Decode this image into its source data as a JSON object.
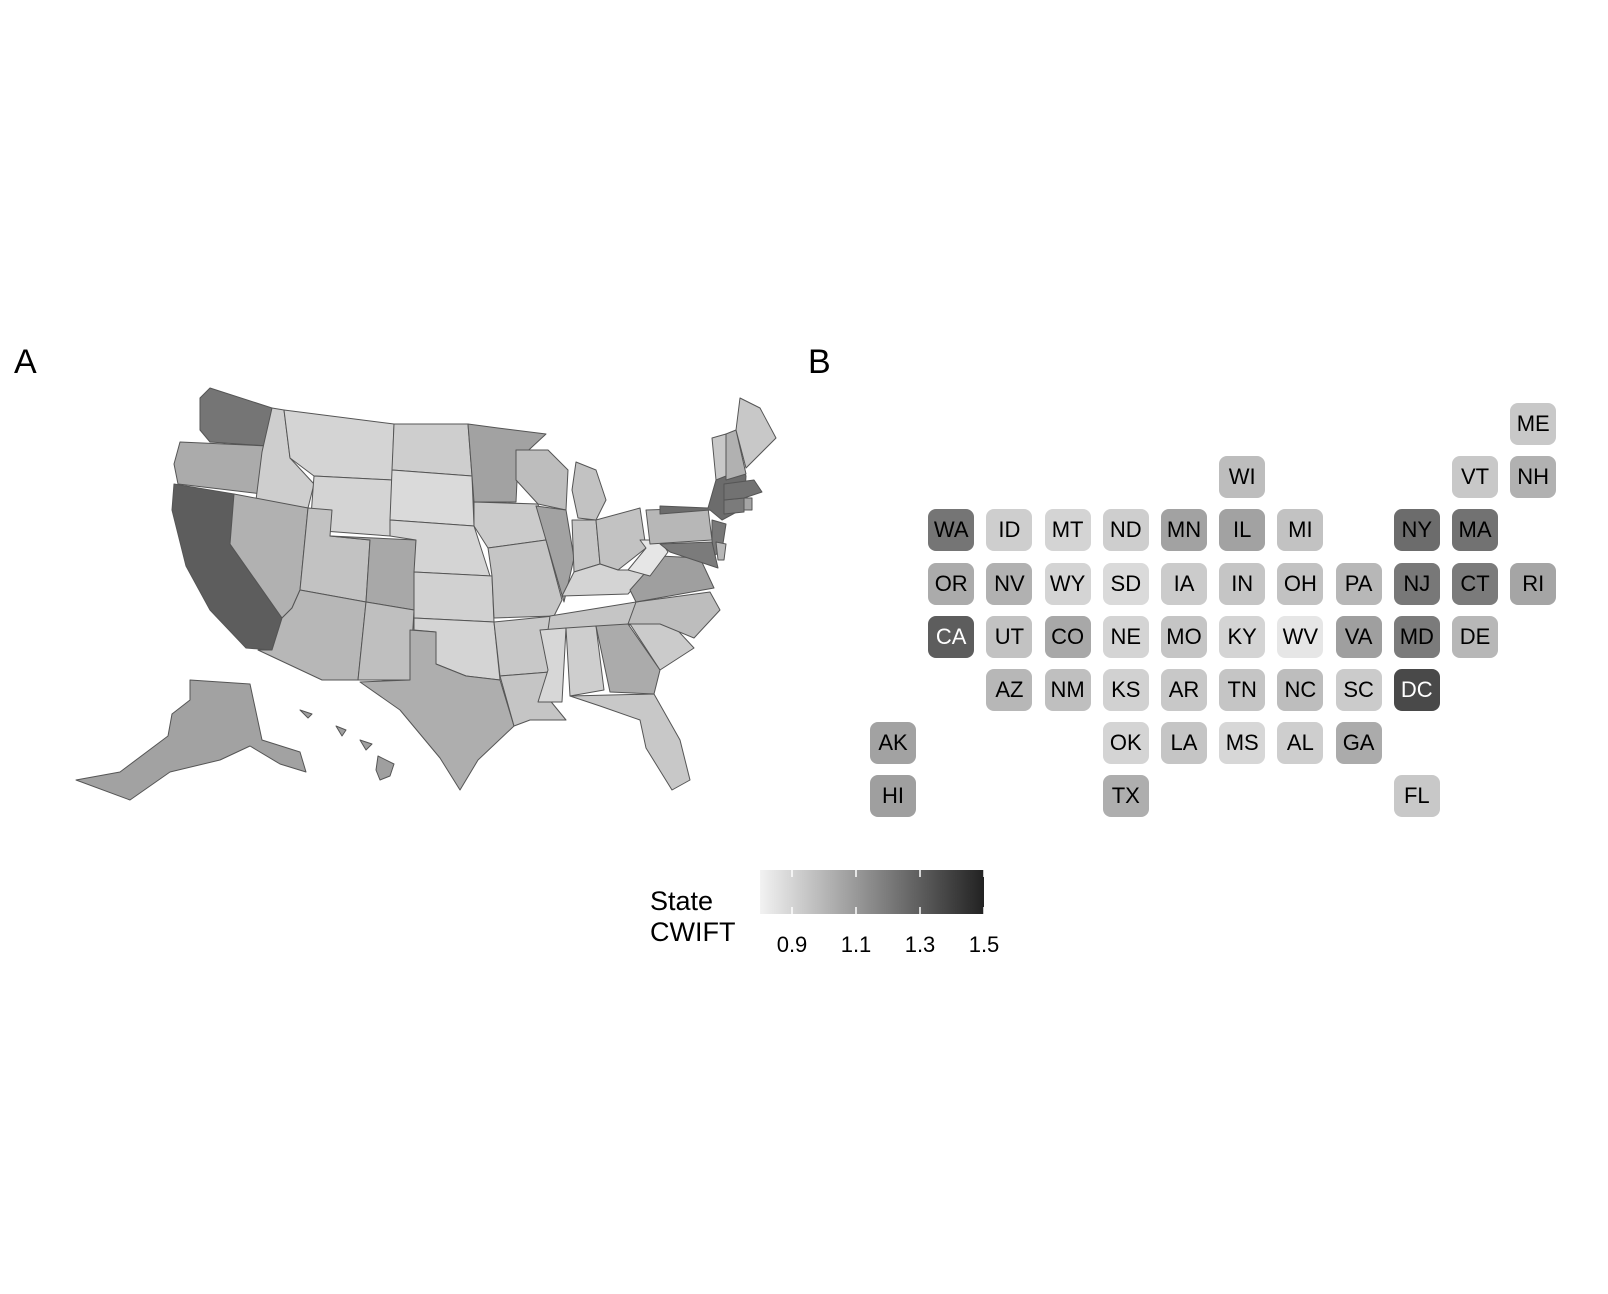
{
  "panels": {
    "a_label": "A",
    "b_label": "B"
  },
  "legend": {
    "title_line1": "State",
    "title_line2": "CWIFT",
    "min": 0.8,
    "max": 1.5,
    "ticks": [
      "0.9",
      "1.1",
      "1.3",
      "1.5"
    ],
    "tick_values": [
      0.9,
      1.1,
      1.3,
      1.5
    ],
    "color_low": "#f2f2f2",
    "color_high": "#222222"
  },
  "states": [
    {
      "abbr": "ME",
      "value": 0.94,
      "col": 11,
      "row": 0
    },
    {
      "abbr": "WI",
      "value": 0.98,
      "col": 6,
      "row": 1
    },
    {
      "abbr": "VT",
      "value": 0.94,
      "col": 10,
      "row": 1
    },
    {
      "abbr": "NH",
      "value": 1.02,
      "col": 11,
      "row": 1
    },
    {
      "abbr": "WA",
      "value": 1.22,
      "col": 1,
      "row": 2
    },
    {
      "abbr": "ID",
      "value": 0.92,
      "col": 2,
      "row": 2
    },
    {
      "abbr": "MT",
      "value": 0.9,
      "col": 3,
      "row": 2
    },
    {
      "abbr": "ND",
      "value": 0.92,
      "col": 4,
      "row": 2
    },
    {
      "abbr": "MN",
      "value": 1.07,
      "col": 5,
      "row": 2
    },
    {
      "abbr": "IL",
      "value": 1.07,
      "col": 6,
      "row": 2
    },
    {
      "abbr": "MI",
      "value": 0.96,
      "col": 7,
      "row": 2
    },
    {
      "abbr": "NY",
      "value": 1.25,
      "col": 9,
      "row": 2
    },
    {
      "abbr": "MA",
      "value": 1.23,
      "col": 10,
      "row": 2
    },
    {
      "abbr": "OR",
      "value": 1.04,
      "col": 1,
      "row": 3
    },
    {
      "abbr": "NV",
      "value": 1.02,
      "col": 2,
      "row": 3
    },
    {
      "abbr": "WY",
      "value": 0.9,
      "col": 3,
      "row": 3
    },
    {
      "abbr": "SD",
      "value": 0.88,
      "col": 4,
      "row": 3
    },
    {
      "abbr": "IA",
      "value": 0.93,
      "col": 5,
      "row": 3
    },
    {
      "abbr": "IN",
      "value": 0.95,
      "col": 6,
      "row": 3
    },
    {
      "abbr": "OH",
      "value": 0.96,
      "col": 7,
      "row": 3
    },
    {
      "abbr": "PA",
      "value": 1.0,
      "col": 8,
      "row": 3
    },
    {
      "abbr": "NJ",
      "value": 1.21,
      "col": 9,
      "row": 3
    },
    {
      "abbr": "CT",
      "value": 1.2,
      "col": 10,
      "row": 3
    },
    {
      "abbr": "RI",
      "value": 1.06,
      "col": 11,
      "row": 3
    },
    {
      "abbr": "CA",
      "value": 1.3,
      "col": 1,
      "row": 4
    },
    {
      "abbr": "UT",
      "value": 0.96,
      "col": 2,
      "row": 4
    },
    {
      "abbr": "CO",
      "value": 1.05,
      "col": 3,
      "row": 4
    },
    {
      "abbr": "NE",
      "value": 0.9,
      "col": 4,
      "row": 4
    },
    {
      "abbr": "MO",
      "value": 0.95,
      "col": 5,
      "row": 4
    },
    {
      "abbr": "KY",
      "value": 0.9,
      "col": 6,
      "row": 4
    },
    {
      "abbr": "WV",
      "value": 0.84,
      "col": 7,
      "row": 4
    },
    {
      "abbr": "VA",
      "value": 1.08,
      "col": 8,
      "row": 4
    },
    {
      "abbr": "MD",
      "value": 1.2,
      "col": 9,
      "row": 4
    },
    {
      "abbr": "DE",
      "value": 1.0,
      "col": 10,
      "row": 4
    },
    {
      "abbr": "AZ",
      "value": 1.0,
      "col": 2,
      "row": 5
    },
    {
      "abbr": "NM",
      "value": 0.97,
      "col": 3,
      "row": 5
    },
    {
      "abbr": "KS",
      "value": 0.91,
      "col": 4,
      "row": 5
    },
    {
      "abbr": "AR",
      "value": 0.94,
      "col": 5,
      "row": 5
    },
    {
      "abbr": "TN",
      "value": 0.95,
      "col": 6,
      "row": 5
    },
    {
      "abbr": "NC",
      "value": 0.98,
      "col": 7,
      "row": 5
    },
    {
      "abbr": "SC",
      "value": 0.93,
      "col": 8,
      "row": 5
    },
    {
      "abbr": "DC",
      "value": 1.37,
      "col": 9,
      "row": 5
    },
    {
      "abbr": "AK",
      "value": 1.07,
      "col": 0,
      "row": 6
    },
    {
      "abbr": "OK",
      "value": 0.9,
      "col": 4,
      "row": 6
    },
    {
      "abbr": "LA",
      "value": 0.95,
      "col": 5,
      "row": 6
    },
    {
      "abbr": "MS",
      "value": 0.89,
      "col": 6,
      "row": 6
    },
    {
      "abbr": "AL",
      "value": 0.92,
      "col": 7,
      "row": 6
    },
    {
      "abbr": "GA",
      "value": 1.04,
      "col": 8,
      "row": 6
    },
    {
      "abbr": "HI",
      "value": 1.08,
      "col": 0,
      "row": 7
    },
    {
      "abbr": "TX",
      "value": 1.03,
      "col": 4,
      "row": 7
    },
    {
      "abbr": "FL",
      "value": 0.94,
      "col": 9,
      "row": 7
    }
  ]
}
